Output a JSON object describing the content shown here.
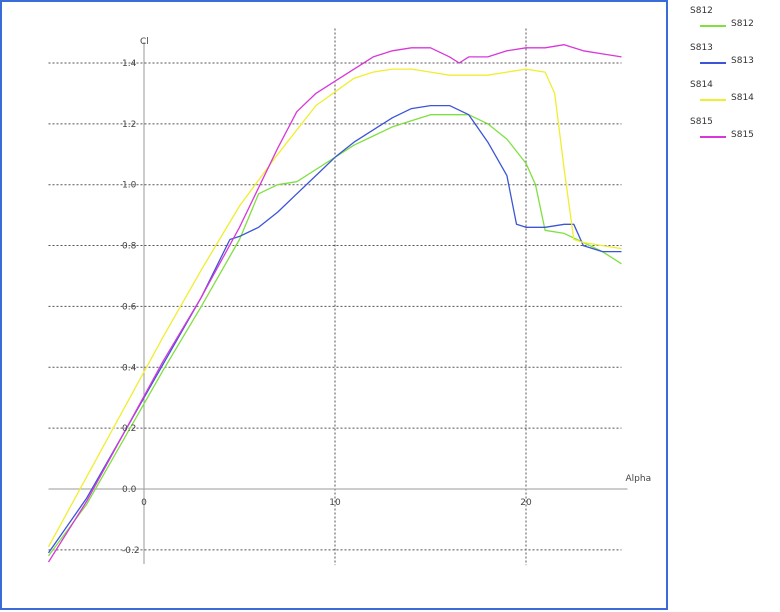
{
  "chart_data": {
    "type": "line",
    "xlabel": "Alpha",
    "ylabel": "Cl",
    "xlim": [
      -5,
      25
    ],
    "ylim": [
      -0.25,
      1.5
    ],
    "x_ticks": [
      0,
      10,
      20
    ],
    "y_ticks": [
      -0.2,
      0.0,
      0.2,
      0.4,
      0.6,
      0.8,
      1.0,
      1.2,
      1.4
    ],
    "x_tick_labels": [
      "0",
      "10",
      "20"
    ],
    "y_tick_labels": [
      "-0.2",
      "0.0",
      "0.2",
      "0.4",
      "0.6",
      "0.8",
      "1.0",
      "1.2",
      "1.4"
    ],
    "grid": true,
    "legend_position": "right",
    "series": [
      {
        "name": "S812",
        "legend_label": "S812",
        "color": "#7fe040",
        "x": [
          -5,
          -3,
          -1,
          1,
          3,
          5,
          6,
          7,
          8,
          9,
          10,
          11,
          12,
          13,
          14,
          15,
          16,
          17,
          18,
          19,
          20,
          20.5,
          21,
          22,
          23,
          24,
          25
        ],
        "y": [
          -0.22,
          -0.05,
          0.17,
          0.39,
          0.6,
          0.82,
          0.97,
          1.0,
          1.01,
          1.05,
          1.09,
          1.13,
          1.16,
          1.19,
          1.21,
          1.23,
          1.23,
          1.23,
          1.2,
          1.15,
          1.07,
          1.0,
          0.85,
          0.84,
          0.81,
          0.78,
          0.74
        ]
      },
      {
        "name": "S813",
        "legend_label": "S813",
        "color": "#3b55d6",
        "x": [
          -5,
          -3,
          -1,
          1,
          3,
          4.5,
          5,
          6,
          7,
          8,
          9,
          10,
          11,
          12,
          13,
          14,
          15,
          16,
          17,
          18,
          19,
          19.5,
          20,
          21,
          22,
          22.5,
          23,
          24,
          25
        ],
        "y": [
          -0.21,
          -0.03,
          0.19,
          0.41,
          0.63,
          0.82,
          0.83,
          0.86,
          0.91,
          0.97,
          1.03,
          1.09,
          1.14,
          1.18,
          1.22,
          1.25,
          1.26,
          1.26,
          1.23,
          1.14,
          1.03,
          0.87,
          0.86,
          0.86,
          0.87,
          0.87,
          0.8,
          0.78,
          0.78
        ]
      },
      {
        "name": "S814",
        "legend_label": "S814",
        "color": "#f0ee30",
        "x": [
          -5,
          -3,
          -1,
          1,
          3,
          5,
          7,
          9,
          11,
          12,
          13,
          14,
          15,
          16,
          17,
          18,
          19,
          20,
          21,
          21.5,
          22,
          22.5,
          23,
          24,
          25
        ],
        "y": [
          -0.19,
          0.04,
          0.27,
          0.5,
          0.72,
          0.93,
          1.1,
          1.26,
          1.35,
          1.37,
          1.38,
          1.38,
          1.37,
          1.36,
          1.36,
          1.36,
          1.37,
          1.38,
          1.37,
          1.3,
          1.05,
          0.82,
          0.81,
          0.8,
          0.79
        ]
      },
      {
        "name": "S815",
        "legend_label": "S815",
        "color": "#d838d8",
        "x": [
          -5,
          -3,
          -1,
          1,
          3,
          5,
          6,
          7,
          8,
          9,
          10,
          11,
          12,
          13,
          14,
          15,
          16,
          16.5,
          17,
          18,
          19,
          20,
          21,
          22,
          23,
          24,
          25
        ],
        "y": [
          -0.24,
          -0.04,
          0.19,
          0.42,
          0.63,
          0.86,
          0.99,
          1.12,
          1.24,
          1.3,
          1.34,
          1.38,
          1.42,
          1.44,
          1.45,
          1.45,
          1.42,
          1.4,
          1.42,
          1.42,
          1.44,
          1.45,
          1.45,
          1.46,
          1.44,
          1.43,
          1.42
        ]
      }
    ]
  }
}
